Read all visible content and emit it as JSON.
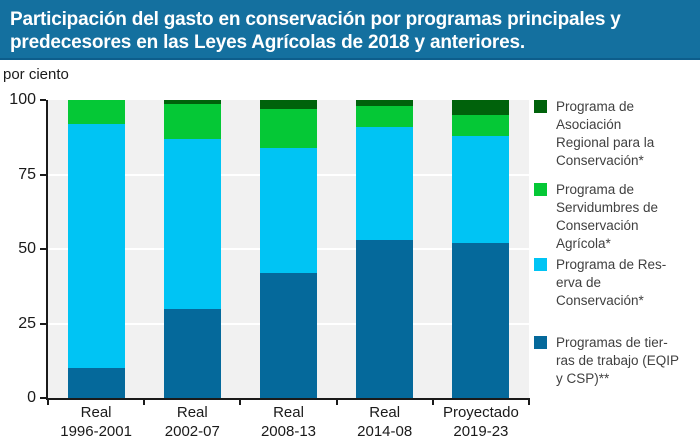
{
  "header": {
    "title_line1": "Participación del gasto en conservación por programas principales y",
    "title_line2": "predecesores en las Leyes Agrícolas de 2018 y anteriores.",
    "bg_color": "#14709f"
  },
  "axis_unit_label": "por ciento",
  "chart_data": {
    "type": "bar",
    "stacked": true,
    "title": "Participación del gasto en conservación por programas principales y predecesores en las Leyes Agrícolas de 2018 y anteriores.",
    "ylabel": "por ciento",
    "ylim": [
      0,
      100
    ],
    "yticks": [
      0,
      25,
      50,
      75,
      100
    ],
    "grid": "horizontal-white-on-gray",
    "legend_position": "right",
    "categories": [
      [
        "Real",
        "1996-2001"
      ],
      [
        "Real",
        "2002-07"
      ],
      [
        "Real",
        "2008-13"
      ],
      [
        "Real",
        "2014-08"
      ],
      [
        "Proyectado",
        "2019-23"
      ]
    ],
    "series": [
      {
        "name": "Programas de tierras de trabajo (EQIP y CSP)**",
        "color": "#05699b",
        "values": [
          10,
          30,
          42,
          53,
          52
        ]
      },
      {
        "name": "Programa de Reserva de Conservación*",
        "color": "#00c4f4",
        "values": [
          82,
          57,
          42,
          38,
          36
        ]
      },
      {
        "name": "Programa de Servidumbres de Conservación Agrícola*",
        "color": "#05c836",
        "values": [
          8,
          11.5,
          13,
          7,
          7
        ]
      },
      {
        "name": "Programa de Asociación Regional para la Conservación*",
        "color": "#00620b",
        "values": [
          0,
          1.5,
          3,
          2,
          5
        ]
      }
    ]
  },
  "legend": {
    "items": [
      {
        "label": "Programa de\nAsociación\nRegional para la\nConservación*",
        "color": "#00620b"
      },
      {
        "label": "Programa de\nServidumbres de\nConservación\nAgrícola*",
        "color": "#05c836"
      },
      {
        "label": "Programa de Res-\nerva de\nConservación*",
        "color": "#00c4f4"
      },
      {
        "label": "Programas de tier-\nras de trabajo (EQIP\ny CSP)**",
        "color": "#05699b"
      }
    ]
  },
  "colors": {
    "plot_background": "#f1f1f1",
    "gridline": "#ffffff",
    "axis": "#1a1a1a",
    "header_background": "#14709f",
    "header_text": "#ffffff"
  }
}
